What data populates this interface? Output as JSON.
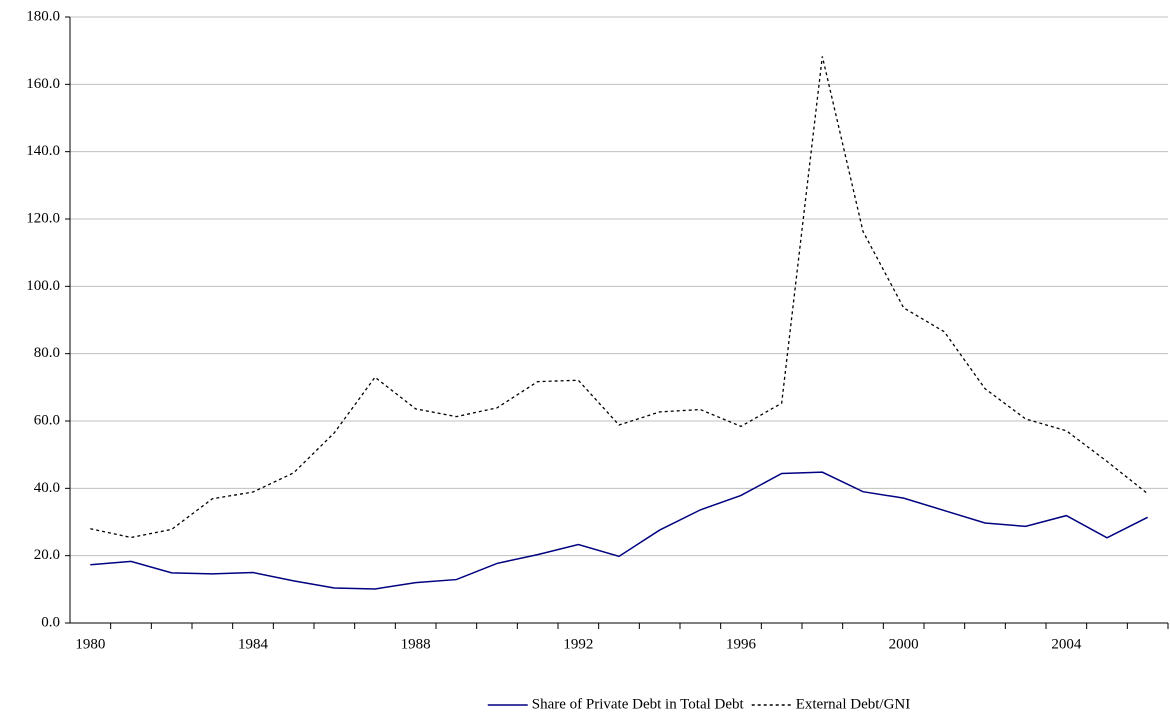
{
  "chart_data": {
    "type": "line",
    "categories": [
      "1980",
      null,
      null,
      null,
      "1984",
      null,
      null,
      null,
      "1988",
      null,
      null,
      null,
      "1992",
      null,
      null,
      null,
      "1996",
      null,
      null,
      null,
      "2000",
      null,
      null,
      null,
      "2004",
      null,
      null
    ],
    "series": [
      {
        "name": "Share of Private Debt in Total Debt",
        "color": "#000080",
        "dash": "none",
        "values": [
          17.3,
          18.3,
          14.9,
          14.6,
          15.0,
          12.5,
          10.4,
          10.1,
          12.0,
          12.9,
          17.7,
          20.3,
          23.3,
          19.8,
          27.6,
          33.6,
          37.9,
          44.4,
          44.8,
          39.0,
          37.1,
          33.4,
          29.7,
          28.7,
          31.9,
          25.3,
          31.4
        ]
      },
      {
        "name": "External Debt/GNI",
        "color": "#000000",
        "dash": "3,3",
        "values": [
          28.0,
          25.4,
          27.8,
          36.9,
          38.9,
          44.6,
          56.5,
          73.0,
          63.6,
          61.3,
          63.9,
          71.7,
          72.1,
          58.8,
          62.7,
          63.4,
          58.4,
          65.3,
          168.3,
          116.3,
          93.6,
          86.5,
          69.6,
          60.6,
          57.1,
          48.0,
          38.4
        ]
      }
    ],
    "ylim": [
      0,
      180
    ],
    "yticks": [
      {
        "value": 0,
        "label": "0.0"
      },
      {
        "value": 20,
        "label": "20.0"
      },
      {
        "value": 40,
        "label": "40.0"
      },
      {
        "value": 60,
        "label": "60.0"
      },
      {
        "value": 80,
        "label": "80.0"
      },
      {
        "value": 100,
        "label": "100.0"
      },
      {
        "value": 120,
        "label": "120.0"
      },
      {
        "value": 140,
        "label": "140.0"
      },
      {
        "value": 160,
        "label": "160.0"
      },
      {
        "value": 180,
        "label": "180.0"
      }
    ],
    "grid": true
  }
}
